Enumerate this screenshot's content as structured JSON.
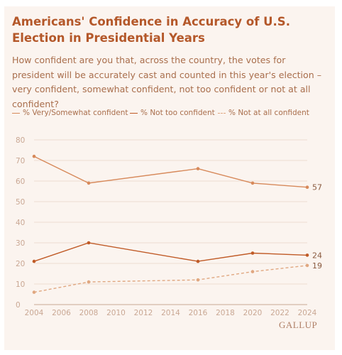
{
  "header": {
    "title": "Americans' Confidence in Accuracy of U.S. Election in Presidential Years",
    "subtitle": "How confident are you that, across the country, the votes for president will be accurately cast and counted in this year's election – very confident, somewhat confident, not too confident or not at all confident?"
  },
  "brand": "GALLUP",
  "colors": {
    "background": "#fbf4ef",
    "title": "#b4582a",
    "very_somewhat": "#d7895a",
    "not_too": "#c05a26",
    "not_at_all": "#e0a780",
    "grid": "#eddcd1"
  },
  "chart_data": {
    "type": "line",
    "title": "Americans' Confidence in Accuracy of U.S. Election in Presidential Years",
    "xlabel": "",
    "ylabel": "",
    "xlim": [
      2004,
      2024
    ],
    "ylim": [
      0,
      80
    ],
    "x_ticks": [
      2004,
      2006,
      2008,
      2010,
      2012,
      2014,
      2016,
      2018,
      2020,
      2022,
      2024
    ],
    "y_ticks": [
      0,
      10,
      20,
      30,
      40,
      50,
      60,
      70,
      80
    ],
    "grid": true,
    "legend_position": "top-left",
    "series": [
      {
        "name": "% Very/Somewhat confident",
        "style": "solid",
        "x": [
          2004,
          2008,
          2016,
          2020,
          2024
        ],
        "values": [
          72,
          59,
          66,
          59,
          57
        ],
        "end_label": "57"
      },
      {
        "name": "% Not too confident",
        "style": "solid",
        "x": [
          2004,
          2008,
          2016,
          2020,
          2024
        ],
        "values": [
          21,
          30,
          21,
          25,
          24
        ],
        "end_label": "24"
      },
      {
        "name": "% Not at all confident",
        "style": "dashed",
        "x": [
          2004,
          2008,
          2016,
          2020,
          2024
        ],
        "values": [
          6,
          11,
          12,
          16,
          19
        ],
        "end_label": "19"
      }
    ]
  }
}
